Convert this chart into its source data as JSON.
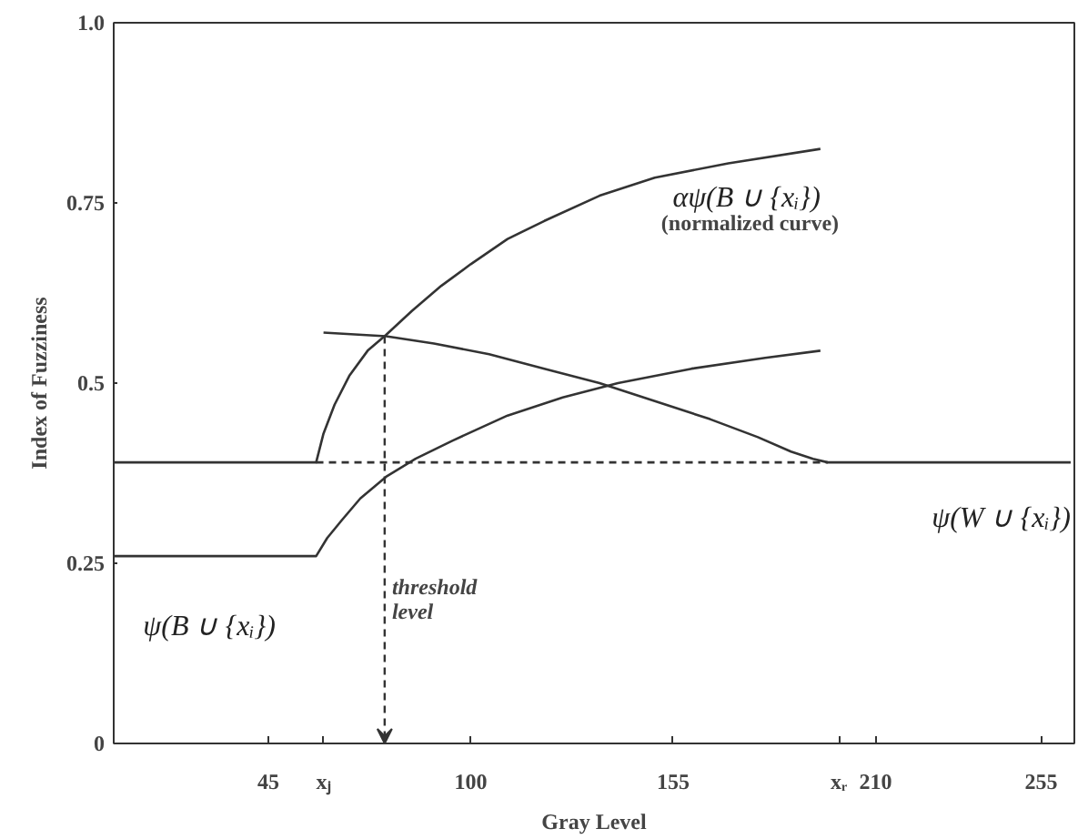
{
  "chart_data": {
    "type": "line",
    "xlabel": "Gray Level",
    "ylabel": "Index of Fuzziness",
    "xlim": [
      3,
      264
    ],
    "ylim": [
      0,
      1
    ],
    "xticks": [
      45,
      {
        "value": 60,
        "label": "xⱼ"
      },
      100,
      155,
      {
        "value": 200,
        "label": "xᵣ"
      },
      210,
      255
    ],
    "yticks": [
      0,
      0.25,
      0.5,
      0.75,
      {
        "value": 1,
        "label": "1.0"
      }
    ],
    "grid": false,
    "marker": "none",
    "series": [
      {
        "name": "αψ(B ∪ {xᵢ})",
        "color": "#333333",
        "x": [
          3,
          58,
          60,
          63,
          67,
          72,
          77,
          84,
          92,
          100,
          110,
          120,
          135,
          150,
          170,
          195
        ],
        "values": [
          0.39,
          0.39,
          0.43,
          0.47,
          0.51,
          0.545,
          0.567,
          0.6,
          0.635,
          0.665,
          0.7,
          0.725,
          0.76,
          0.785,
          0.805,
          0.825
        ]
      },
      {
        "name": "ψ(B ∪ {xᵢ})",
        "color": "#333333",
        "x": [
          3,
          58,
          61,
          65,
          70,
          77,
          85,
          95,
          110,
          125,
          140,
          160,
          180,
          195
        ],
        "values": [
          0.26,
          0.26,
          0.285,
          0.31,
          0.34,
          0.37,
          0.395,
          0.42,
          0.455,
          0.48,
          0.5,
          0.52,
          0.535,
          0.545
        ]
      },
      {
        "name": "ψ(W ∪ {xᵢ})",
        "color": "#333333",
        "x": [
          60,
          77,
          90,
          105,
          120,
          135,
          150,
          165,
          178,
          187,
          193,
          197,
          263
        ],
        "values": [
          0.57,
          0.565,
          0.555,
          0.54,
          0.52,
          0.5,
          0.475,
          0.45,
          0.425,
          0.405,
          0.395,
          0.39,
          0.39
        ]
      },
      {
        "color": "#333333",
        "line_style": "dashed",
        "x": [
          58,
          197
        ],
        "values": [
          0.39,
          0.39
        ]
      }
    ],
    "annotations": [
      "(normalized curve)",
      "threshold level"
    ]
  }
}
